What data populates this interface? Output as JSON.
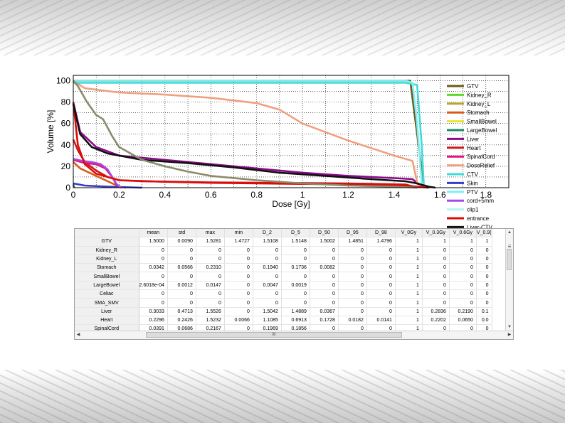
{
  "chart_data": {
    "type": "line",
    "xlabel": "Dose [Gy]",
    "ylabel": "Volume [%]",
    "xlim": [
      0,
      1.9
    ],
    "ylim": [
      0,
      105
    ],
    "grid": true,
    "x_ticks": [
      "0",
      "0.2",
      "0.4",
      "0.6",
      "0.8",
      "1",
      "1.2",
      "1.4",
      "1.6",
      "1.8"
    ],
    "y_ticks": [
      "0",
      "20",
      "40",
      "60",
      "80",
      "100"
    ],
    "legend_position": "right",
    "series": [
      {
        "name": "GTV",
        "color": "#6b5a1e",
        "points": [
          [
            0,
            100
          ],
          [
            1.47,
            100
          ],
          [
            1.5,
            50
          ],
          [
            1.53,
            0
          ]
        ]
      },
      {
        "name": "Kidney_R",
        "color": "#5ed62a",
        "points": []
      },
      {
        "name": "Kidney_L",
        "color": "#b8a52a",
        "points": []
      },
      {
        "name": "Stomach",
        "color": "#d85a1a",
        "points": [
          [
            0,
            24
          ],
          [
            0.03,
            18
          ],
          [
            0.07,
            14
          ],
          [
            0.12,
            9
          ],
          [
            0.17,
            4
          ],
          [
            0.2,
            1
          ],
          [
            0.23,
            0
          ]
        ]
      },
      {
        "name": "SmallBowel",
        "color": "#e6e63a",
        "points": []
      },
      {
        "name": "LargeBowel",
        "color": "#1e8a6a",
        "points": [
          [
            0,
            3
          ],
          [
            0.005,
            0
          ]
        ]
      },
      {
        "name": "Liver",
        "color": "#8a0a8a",
        "points": [
          [
            0,
            80
          ],
          [
            0.03,
            52
          ],
          [
            0.1,
            38
          ],
          [
            0.2,
            30
          ],
          [
            0.4,
            26
          ],
          [
            0.6,
            22
          ],
          [
            0.8,
            18
          ],
          [
            1.0,
            14
          ],
          [
            1.2,
            11
          ],
          [
            1.4,
            9
          ],
          [
            1.48,
            8
          ],
          [
            1.52,
            1
          ],
          [
            1.55,
            0
          ]
        ]
      },
      {
        "name": "Heart",
        "color": "#cc1a1a",
        "points": [
          [
            0,
            45
          ],
          [
            0.02,
            35
          ],
          [
            0.05,
            24
          ],
          [
            0.1,
            16
          ],
          [
            0.15,
            10
          ],
          [
            0.2,
            7
          ],
          [
            0.3,
            6
          ],
          [
            0.6,
            5
          ],
          [
            0.9,
            4.5
          ],
          [
            1.2,
            4
          ],
          [
            1.45,
            3
          ],
          [
            1.5,
            0
          ]
        ]
      },
      {
        "name": "SpinalCord",
        "color": "#e0147a",
        "points": [
          [
            0,
            26
          ],
          [
            0.05,
            23
          ],
          [
            0.1,
            22
          ],
          [
            0.14,
            18
          ],
          [
            0.17,
            10
          ],
          [
            0.19,
            2
          ],
          [
            0.21,
            0
          ]
        ]
      },
      {
        "name": "DoseRelief",
        "color": "#f0a07e",
        "points": [
          [
            0,
            100
          ],
          [
            0.05,
            93
          ],
          [
            0.2,
            89
          ],
          [
            0.4,
            87
          ],
          [
            0.6,
            84
          ],
          [
            0.8,
            79
          ],
          [
            0.9,
            73
          ],
          [
            1.0,
            60
          ],
          [
            1.1,
            52
          ],
          [
            1.2,
            44
          ],
          [
            1.3,
            37
          ],
          [
            1.4,
            30
          ],
          [
            1.48,
            25
          ],
          [
            1.5,
            5
          ],
          [
            1.52,
            0
          ]
        ]
      },
      {
        "name": "CTV",
        "color": "#40dada",
        "points": [
          [
            0,
            98
          ],
          [
            0.9,
            98
          ],
          [
            1.45,
            98
          ],
          [
            1.5,
            96
          ],
          [
            1.52,
            40
          ],
          [
            1.53,
            0
          ]
        ]
      },
      {
        "name": "Skin",
        "color": "#3a3ac8",
        "points": [
          [
            0,
            4
          ],
          [
            0.05,
            2
          ],
          [
            0.15,
            1
          ],
          [
            0.3,
            0
          ]
        ]
      },
      {
        "name": "PTV",
        "color": "#7ef0f0",
        "points": [
          [
            0,
            100
          ],
          [
            1.45,
            100
          ],
          [
            1.48,
            98
          ],
          [
            1.5,
            60
          ],
          [
            1.52,
            5
          ],
          [
            1.54,
            0
          ]
        ]
      },
      {
        "name": "cord+5mm",
        "color": "#a64ae6",
        "points": [
          [
            0,
            27
          ],
          [
            0.04,
            25
          ],
          [
            0.08,
            24
          ],
          [
            0.12,
            22
          ],
          [
            0.15,
            17
          ],
          [
            0.17,
            10
          ],
          [
            0.19,
            3
          ],
          [
            0.21,
            0
          ]
        ]
      },
      {
        "name": "clip1",
        "color": "#b4f4f4",
        "points": []
      },
      {
        "name": "entrance",
        "color": "#dd0a0a",
        "points": [
          [
            0,
            80
          ],
          [
            0.02,
            40
          ],
          [
            0.05,
            22
          ],
          [
            0.1,
            13
          ],
          [
            0.2,
            7
          ],
          [
            0.4,
            5.5
          ],
          [
            0.6,
            4.5
          ],
          [
            0.8,
            4
          ],
          [
            1.0,
            3.5
          ],
          [
            1.2,
            3
          ],
          [
            1.45,
            2
          ],
          [
            1.52,
            0.5
          ],
          [
            1.55,
            0
          ]
        ]
      },
      {
        "name": "Liver-CTV",
        "color": "#111111",
        "points": [
          [
            0,
            78
          ],
          [
            0.03,
            50
          ],
          [
            0.08,
            38
          ],
          [
            0.15,
            32
          ],
          [
            0.3,
            26
          ],
          [
            0.5,
            23
          ],
          [
            0.7,
            19
          ],
          [
            0.9,
            14
          ],
          [
            1.1,
            11
          ],
          [
            1.3,
            8
          ],
          [
            1.45,
            6
          ],
          [
            1.5,
            4
          ],
          [
            1.55,
            1
          ],
          [
            1.58,
            0
          ]
        ]
      },
      {
        "name": "",
        "color": "#8a8a6a",
        "points": [
          [
            0,
            100
          ],
          [
            0.02,
            95
          ],
          [
            0.06,
            80
          ],
          [
            0.1,
            68
          ],
          [
            0.13,
            64
          ],
          [
            0.17,
            48
          ],
          [
            0.2,
            38
          ],
          [
            0.3,
            26
          ],
          [
            0.4,
            20
          ],
          [
            0.5,
            15
          ],
          [
            0.6,
            11
          ],
          [
            0.8,
            7
          ],
          [
            1.0,
            4
          ],
          [
            1.2,
            2
          ],
          [
            1.4,
            1
          ],
          [
            1.5,
            0
          ]
        ]
      }
    ]
  },
  "table": {
    "columns": [
      "mean",
      "std",
      "max",
      "min",
      "D_2",
      "D_5",
      "D_50",
      "D_95",
      "D_98",
      "V_0Gy",
      "V_0.3Gy",
      "V_0.6Gy",
      "V_0.9("
    ],
    "rows": [
      {
        "name": "GTV",
        "cells": [
          "1.5000",
          "0.0090",
          "1.5281",
          "1.4727",
          "1.5108",
          "1.5148",
          "1.5002",
          "1.4851",
          "1.4796",
          "1",
          "1",
          "1",
          "1"
        ]
      },
      {
        "name": "Kidney_R",
        "cells": [
          "0",
          "0",
          "0",
          "0",
          "0",
          "0",
          "0",
          "0",
          "0",
          "1",
          "0",
          "0",
          "0"
        ]
      },
      {
        "name": "Kidney_L",
        "cells": [
          "0",
          "0",
          "0",
          "0",
          "0",
          "0",
          "0",
          "0",
          "0",
          "1",
          "0",
          "0",
          "0"
        ]
      },
      {
        "name": "Stomach",
        "cells": [
          "0.0342",
          "0.0566",
          "0.2310",
          "0",
          "0.1940",
          "0.1736",
          "0.0082",
          "0",
          "0",
          "1",
          "0",
          "0",
          "0"
        ]
      },
      {
        "name": "SmallBowel",
        "cells": [
          "0",
          "0",
          "0",
          "0",
          "0",
          "0",
          "0",
          "0",
          "0",
          "1",
          "0",
          "0",
          "0"
        ]
      },
      {
        "name": "LargeBowel",
        "cells": [
          "2.6018e-04",
          "0.0012",
          "0.0147",
          "0",
          "0.0047",
          "0.0019",
          "0",
          "0",
          "0",
          "1",
          "0",
          "0",
          "0"
        ]
      },
      {
        "name": "Celiac",
        "cells": [
          "0",
          "0",
          "0",
          "0",
          "0",
          "0",
          "0",
          "0",
          "0",
          "1",
          "0",
          "0",
          "0"
        ]
      },
      {
        "name": "SMA_SMV",
        "cells": [
          "0",
          "0",
          "0",
          "0",
          "0",
          "0",
          "0",
          "0",
          "0",
          "1",
          "0",
          "0",
          "0"
        ]
      },
      {
        "name": "Liver",
        "cells": [
          "0.3033",
          "0.4713",
          "1.5526",
          "0",
          "1.5042",
          "1.4889",
          "0.0367",
          "0",
          "0",
          "1",
          "0.2836",
          "0.2190",
          "0.1"
        ]
      },
      {
        "name": "Heart",
        "cells": [
          "0.2296",
          "0.2426",
          "1.5232",
          "0.0066",
          "1.1085",
          "0.6913",
          "0.1728",
          "0.0182",
          "0.0141",
          "1",
          "0.2202",
          "0.0650",
          "0.0"
        ]
      },
      {
        "name": "SpinalCord",
        "cells": [
          "0.0391",
          "0.0686",
          "0.2167",
          "0",
          "0.1969",
          "0.1856",
          "0",
          "0",
          "0",
          "1",
          "0",
          "0",
          "0"
        ]
      }
    ],
    "hscroll_glyph": "III",
    "vscroll_glyph": "≡"
  }
}
